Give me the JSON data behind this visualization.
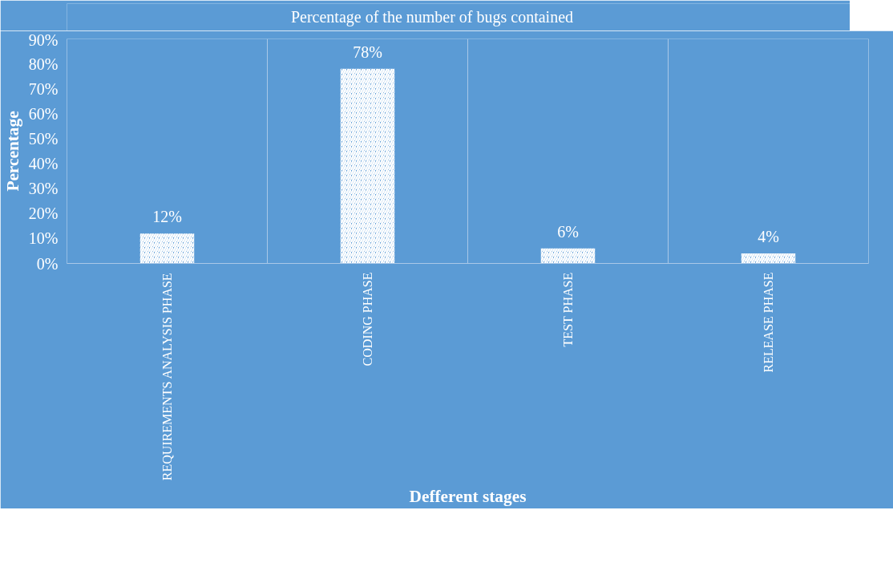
{
  "chart_data": {
    "type": "bar",
    "xlabel": "Defferent stages",
    "ylabel": "Percentage",
    "categories": [
      "REQUIREMENTS ANALYSIS PHASE",
      "CODING PHASE",
      "TEST PHASE",
      "RELEASE PHASE"
    ],
    "series": [
      {
        "name": "Percentage of the number of bugs contained",
        "color": "#ffffff",
        "values": [
          12,
          78,
          6,
          4
        ],
        "value_labels": [
          "12%",
          "78%",
          "6%",
          "4%"
        ]
      }
    ],
    "ylim": [
      0,
      90
    ],
    "yticks": [
      {
        "value": 0,
        "label": "0%"
      },
      {
        "value": 10,
        "label": "10%"
      },
      {
        "value": 20,
        "label": "20%"
      },
      {
        "value": 30,
        "label": "30%"
      },
      {
        "value": 40,
        "label": "40%"
      },
      {
        "value": 50,
        "label": "50%"
      },
      {
        "value": 60,
        "label": "60%"
      },
      {
        "value": 70,
        "label": "70%"
      },
      {
        "value": 80,
        "label": "80%"
      },
      {
        "value": 90,
        "label": "90%"
      }
    ],
    "grid": "x",
    "legend": "top"
  }
}
